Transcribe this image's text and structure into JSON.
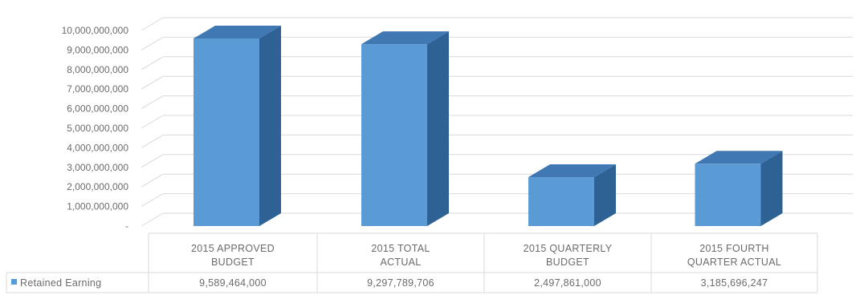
{
  "chart_data": {
    "type": "bar",
    "style": "3d-column-with-data-table",
    "categories": [
      [
        "2015 APPROVED",
        "BUDGET"
      ],
      [
        "2015 TOTAL",
        "ACTUAL"
      ],
      [
        "2015 QUARTERLY",
        "BUDGET"
      ],
      [
        "2015 FOURTH",
        "QUARTER ACTUAL"
      ]
    ],
    "series": [
      {
        "name": "Retained Earning",
        "values": [
          9589464000,
          9297789706,
          2497861000,
          3185696247
        ],
        "value_labels": [
          "9,589,464,000",
          "9,297,789,706",
          "2,497,861,000",
          "3,185,696,247"
        ],
        "color": "#5b9bd5"
      }
    ],
    "ylim": [
      0,
      10000000000
    ],
    "y_ticks": [
      "-",
      "1,000,000,000",
      "2,000,000,000",
      "3,000,000,000",
      "4,000,000,000",
      "5,000,000,000",
      "6,000,000,000",
      "7,000,000,000",
      "8,000,000,000",
      "9,000,000,000",
      "10,000,000,000"
    ],
    "y_tick_values": [
      0,
      1000000000,
      2000000000,
      3000000000,
      4000000000,
      5000000000,
      6000000000,
      7000000000,
      8000000000,
      9000000000,
      10000000000
    ],
    "grid": true,
    "legend_placement": "data-table-left",
    "colors": {
      "bar_front": "#5b9bd5",
      "bar_side": "#2f6294",
      "bar_top": "#3f78b2",
      "grid": "#d9d9d9",
      "text": "#6b6b6b"
    }
  }
}
